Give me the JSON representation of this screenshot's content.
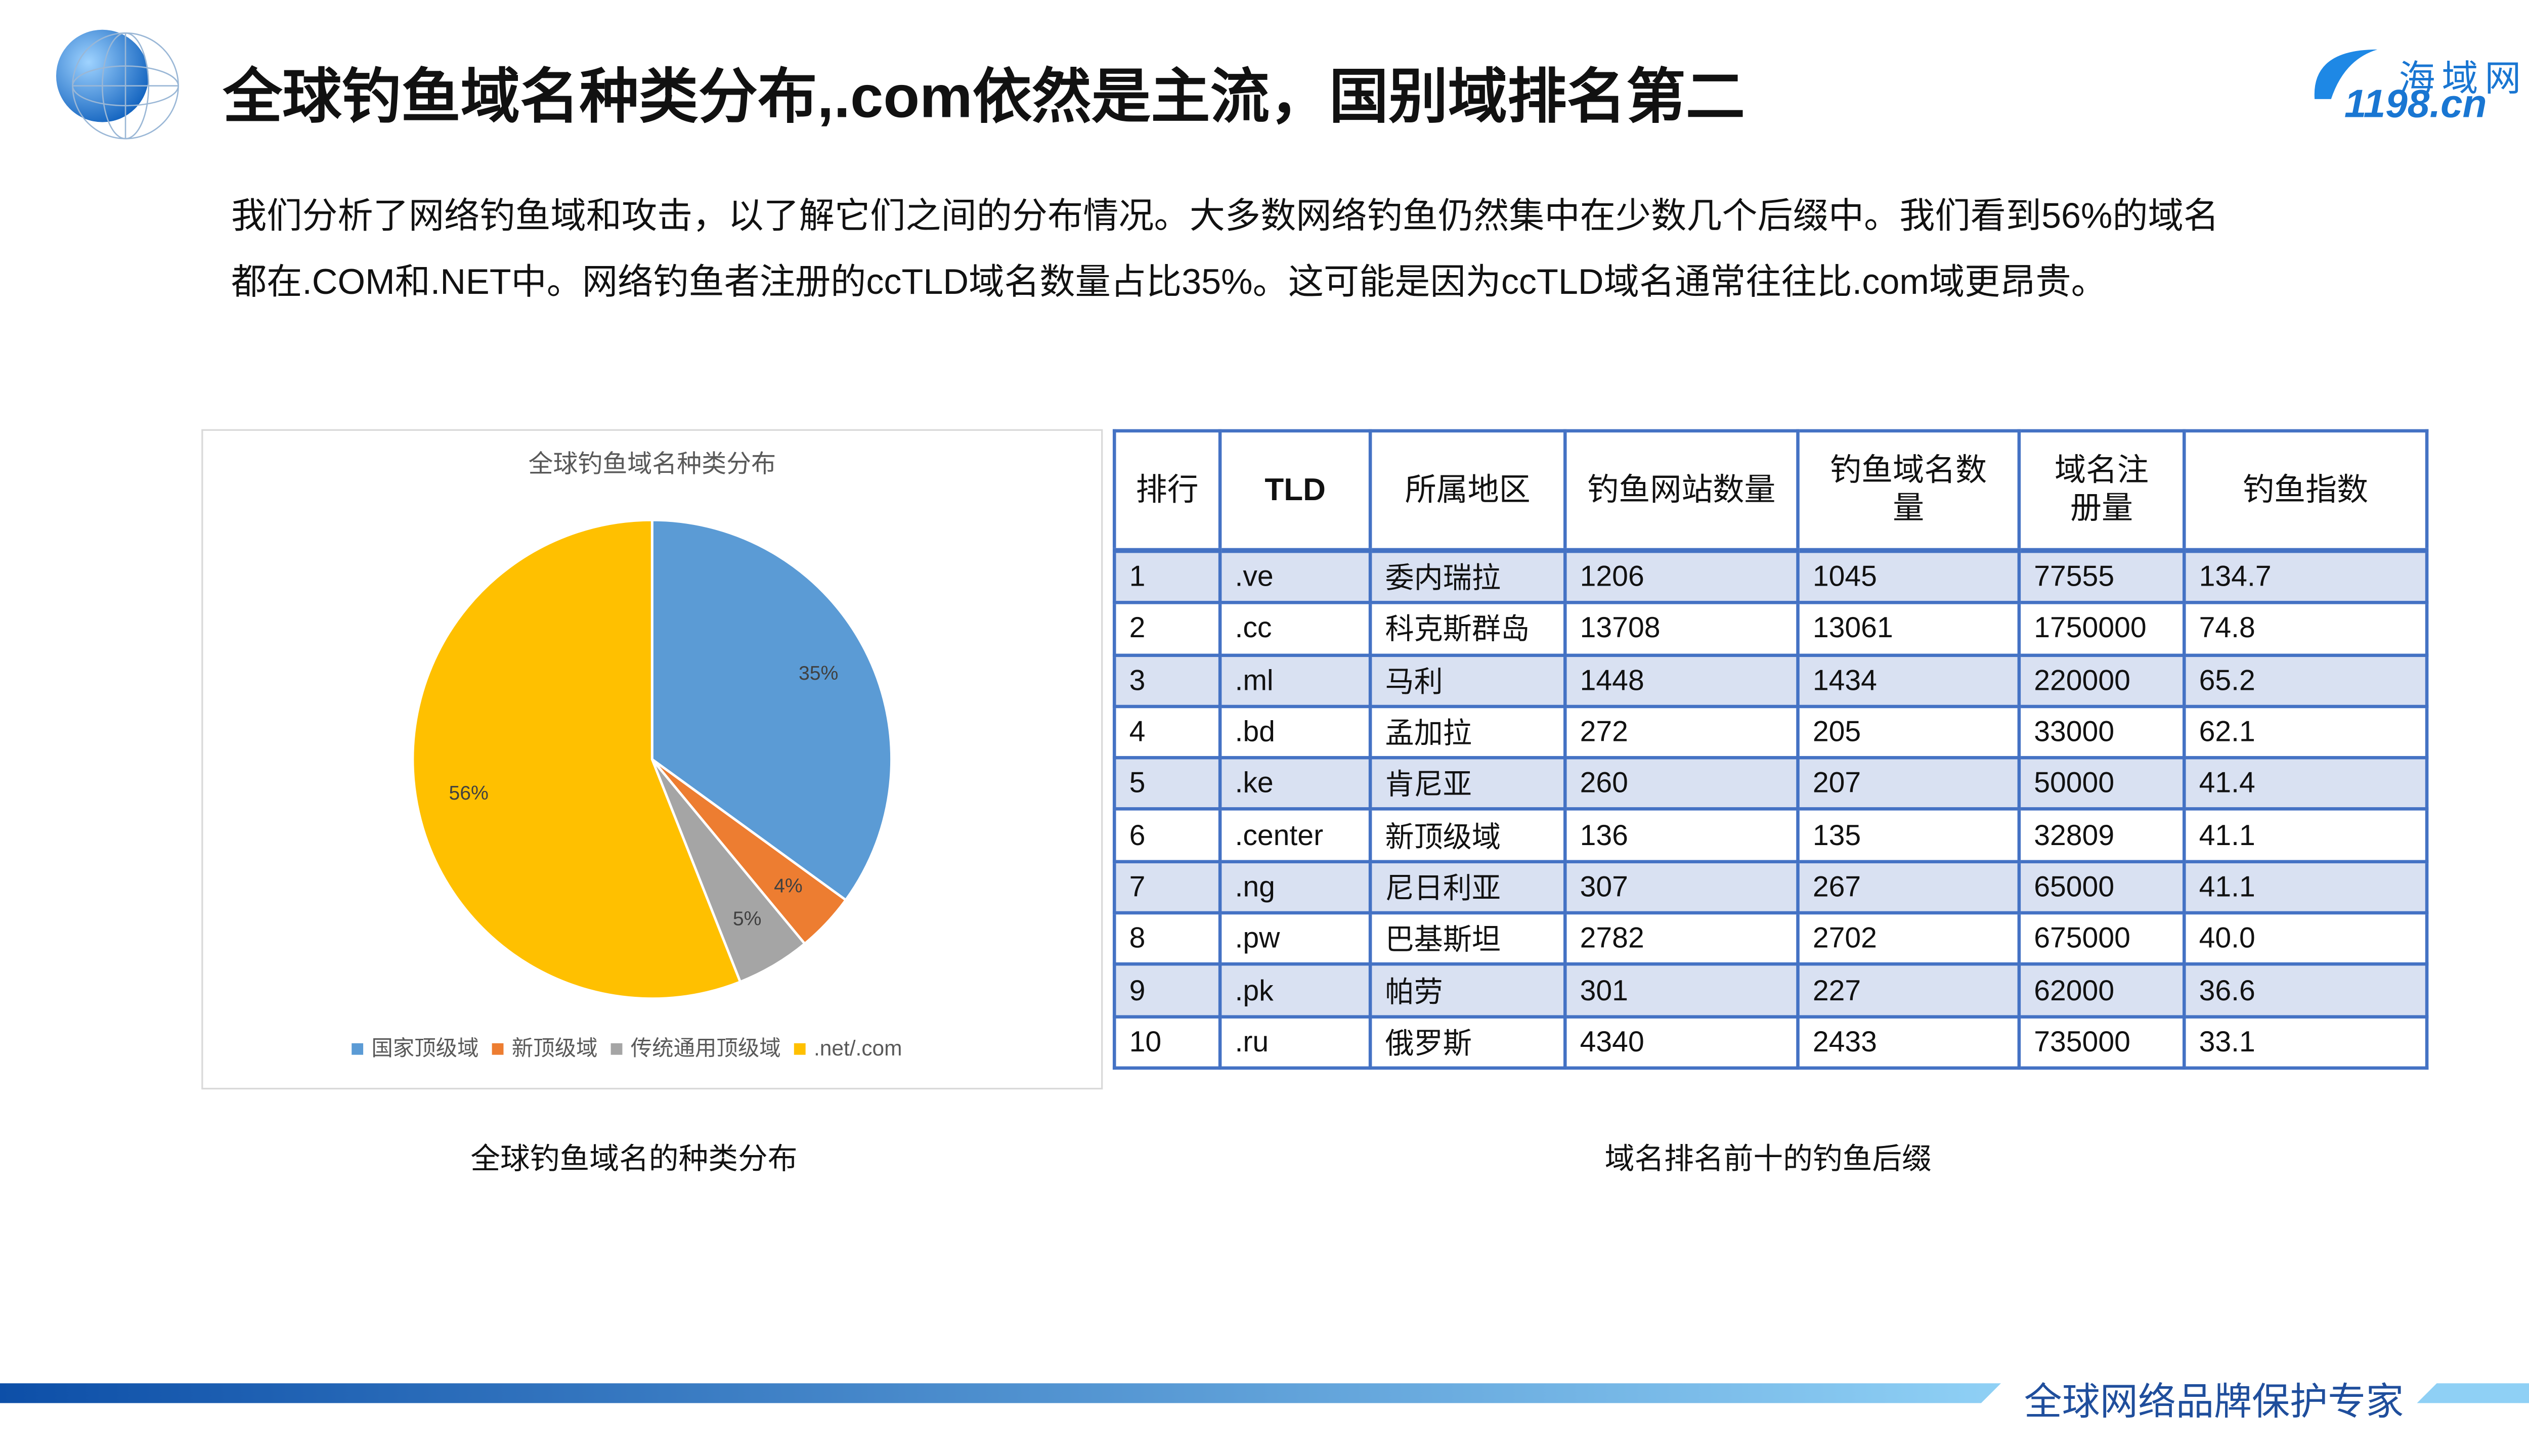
{
  "header": {
    "title": "全球钓鱼域名种类分布,.com依然是主流，国别域排名第二",
    "logo_name": "海域网",
    "logo_url": "1198.cn"
  },
  "paragraph": [
    "我们分析了网络钓鱼域和攻击，以了解它们之间的分布情况。大多数网络钓鱼仍然集中在少数几个后缀中。我们看到56%的域名",
    "都在.COM和.NET中。网络钓鱼者注册的ccTLD域名数量占比35%。这可能是因为ccTLD域名通常往往比.com域更昂贵。"
  ],
  "chart_data": {
    "type": "pie",
    "title": "全球钓鱼域名种类分布",
    "categories": [
      "国家顶级域",
      "新顶级域",
      "传统通用顶级域",
      ".net/.com"
    ],
    "values": [
      35,
      4,
      5,
      56
    ],
    "value_labels": [
      "35%",
      "4%",
      "5%",
      "56%"
    ],
    "colors": [
      "#5b9bd5",
      "#ed7d31",
      "#a5a5a5",
      "#ffc000"
    ],
    "legend": "bottom"
  },
  "chart_caption": "全球钓鱼域名的种类分布",
  "table": {
    "columns": [
      "排行",
      "TLD",
      "所属地区",
      "钓鱼网站数量",
      "钓鱼域名数量",
      "域名注册量",
      "钓鱼指数"
    ],
    "rows": [
      [
        "1",
        ".ve",
        "委内瑞拉",
        "1206",
        "1045",
        "77555",
        "134.7"
      ],
      [
        "2",
        ".cc",
        "科克斯群岛",
        "13708",
        "13061",
        "1750000",
        "74.8"
      ],
      [
        "3",
        ".ml",
        "马利",
        "1448",
        "1434",
        "220000",
        "65.2"
      ],
      [
        "4",
        ".bd",
        "孟加拉",
        "272",
        "205",
        "33000",
        "62.1"
      ],
      [
        "5",
        ".ke",
        "肯尼亚",
        "260",
        "207",
        "50000",
        "41.4"
      ],
      [
        "6",
        ".center",
        "新顶级域",
        "136",
        "135",
        "32809",
        "41.1"
      ],
      [
        "7",
        ".ng",
        "尼日利亚",
        "307",
        "267",
        "65000",
        "41.1"
      ],
      [
        "8",
        ".pw",
        "巴基斯坦",
        "2782",
        "2702",
        "675000",
        "40.0"
      ],
      [
        "9",
        ".pk",
        "帕劳",
        "301",
        "227",
        "62000",
        "36.6"
      ],
      [
        "10",
        ".ru",
        "俄罗斯",
        "4340",
        "2433",
        "735000",
        "33.1"
      ]
    ]
  },
  "table_caption": "域名排名前十的钓鱼后缀",
  "footer": "全球网络品牌保护专家"
}
